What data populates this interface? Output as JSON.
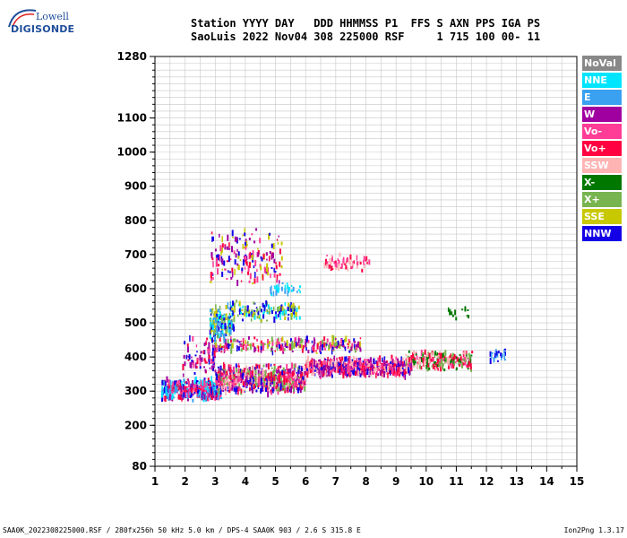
{
  "logo": {
    "line1": "Lowell",
    "line2": "DIGISONDE"
  },
  "header": {
    "line1": "Station YYYY DAY   DDD HHMMSS P1  FFS S AXN PPS IGA PS",
    "line2": "SaoLuis 2022 Nov04 308 225000 RSF     1 715 100 00- 11"
  },
  "legend": [
    {
      "label": "NoVal",
      "color": "#888888"
    },
    {
      "label": "NNE",
      "color": "#00e5ff"
    },
    {
      "label": "E",
      "color": "#3aa0f0"
    },
    {
      "label": "W",
      "color": "#a000a0"
    },
    {
      "label": "Vo-",
      "color": "#ff3c96"
    },
    {
      "label": "Vo+",
      "color": "#ff0040"
    },
    {
      "label": "SSW",
      "color": "#ffb4b4"
    },
    {
      "label": "X-",
      "color": "#007800"
    },
    {
      "label": "X+",
      "color": "#78b450"
    },
    {
      "label": "SSE",
      "color": "#c8c800"
    },
    {
      "label": "NNW",
      "color": "#1400e6"
    }
  ],
  "footer": {
    "left": "SAA0K_2022308225000.RSF / 280fx256h 50 kHz 5.0 km / DPS-4 SAA0K 903 / 2.6 S 315.8 E",
    "right": "Ion2Png 1.3.17"
  },
  "chart_data": {
    "type": "scatter",
    "x": {
      "min": 1,
      "max": 15,
      "ticks": [
        "1",
        "2",
        "3",
        "4",
        "5",
        "6",
        "7",
        "8",
        "9",
        "10",
        "11",
        "12",
        "13",
        "14",
        "15"
      ]
    },
    "y": {
      "min": 80,
      "max": 1280,
      "ticks": [
        80,
        200,
        300,
        400,
        500,
        600,
        700,
        800,
        900,
        1000,
        1100,
        1280
      ],
      "tick_labels": [
        "80",
        "200",
        "300",
        "400",
        "500",
        "600",
        "700",
        "800",
        "900",
        "1000",
        "1100",
        "1280"
      ]
    },
    "grid": true,
    "legend_placement": "right",
    "clusters": [
      {
        "x": [
          1.2,
          3.2
        ],
        "y": [
          270,
          340
        ],
        "colors": [
          3,
          10,
          4,
          5,
          1,
          2
        ],
        "n": 420
      },
      {
        "x": [
          3.0,
          6.0
        ],
        "y": [
          290,
          380
        ],
        "colors": [
          4,
          5,
          6,
          3,
          10,
          8
        ],
        "n": 700
      },
      {
        "x": [
          6.0,
          9.5
        ],
        "y": [
          340,
          400
        ],
        "colors": [
          5,
          4,
          6,
          3,
          10
        ],
        "n": 650
      },
      {
        "x": [
          9.3,
          11.5
        ],
        "y": [
          360,
          420
        ],
        "colors": [
          5,
          4,
          6,
          8,
          7
        ],
        "n": 260
      },
      {
        "x": [
          12.1,
          12.6
        ],
        "y": [
          385,
          425
        ],
        "colors": [
          10,
          2
        ],
        "n": 22
      },
      {
        "x": [
          2.9,
          7.8
        ],
        "y": [
          410,
          460
        ],
        "colors": [
          9,
          10,
          4,
          5,
          3,
          8
        ],
        "n": 260
      },
      {
        "x": [
          2.8,
          3.6
        ],
        "y": [
          440,
          560
        ],
        "colors": [
          1,
          2,
          10,
          9,
          8
        ],
        "n": 160
      },
      {
        "x": [
          3.5,
          5.8
        ],
        "y": [
          500,
          570
        ],
        "colors": [
          9,
          8,
          1,
          10
        ],
        "n": 140
      },
      {
        "x": [
          4.8,
          5.8
        ],
        "y": [
          580,
          620
        ],
        "colors": [
          1,
          2
        ],
        "n": 30
      },
      {
        "x": [
          2.8,
          5.2
        ],
        "y": [
          600,
          780
        ],
        "colors": [
          3,
          9,
          10,
          5,
          4
        ],
        "n": 170
      },
      {
        "x": [
          6.6,
          8.1
        ],
        "y": [
          650,
          700
        ],
        "colors": [
          5,
          6,
          4
        ],
        "n": 70
      },
      {
        "x": [
          10.7,
          11.5
        ],
        "y": [
          510,
          550
        ],
        "colors": [
          7
        ],
        "n": 12
      },
      {
        "x": [
          1.9,
          3.0
        ],
        "y": [
          340,
          460
        ],
        "colors": [
          10,
          3,
          4,
          5
        ],
        "n": 80
      }
    ]
  }
}
